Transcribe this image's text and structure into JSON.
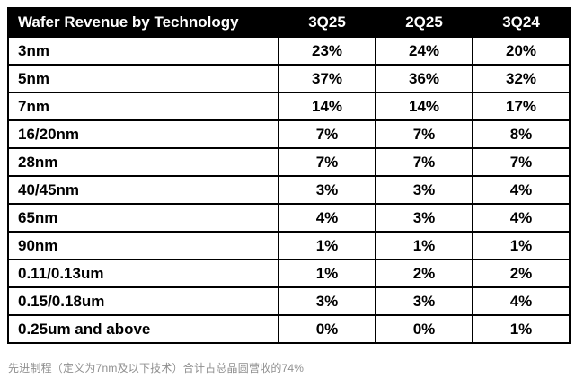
{
  "chart_data": {
    "type": "table",
    "title": "Wafer Revenue by Technology",
    "columns": [
      "3Q25",
      "2Q25",
      "3Q24"
    ],
    "rows": [
      {
        "label": "3nm",
        "values": [
          "23%",
          "24%",
          "20%"
        ]
      },
      {
        "label": "5nm",
        "values": [
          "37%",
          "36%",
          "32%"
        ]
      },
      {
        "label": "7nm",
        "values": [
          "14%",
          "14%",
          "17%"
        ]
      },
      {
        "label": "16/20nm",
        "values": [
          "7%",
          "7%",
          "8%"
        ]
      },
      {
        "label": "28nm",
        "values": [
          "7%",
          "7%",
          "7%"
        ]
      },
      {
        "label": "40/45nm",
        "values": [
          "3%",
          "3%",
          "4%"
        ]
      },
      {
        "label": "65nm",
        "values": [
          "4%",
          "3%",
          "4%"
        ]
      },
      {
        "label": "90nm",
        "values": [
          "1%",
          "1%",
          "1%"
        ]
      },
      {
        "label": "0.11/0.13um",
        "values": [
          "1%",
          "2%",
          "2%"
        ]
      },
      {
        "label": "0.15/0.18um",
        "values": [
          "3%",
          "3%",
          "4%"
        ]
      },
      {
        "label": "0.25um and above",
        "values": [
          "0%",
          "0%",
          "1%"
        ]
      }
    ],
    "footnote": "先进制程（定义为7nm及以下技术）合计占总晶圆营收的74%",
    "colors": {
      "header_bg": "#000000",
      "header_text": "#ffffff",
      "cell_bg": "#ffffff",
      "cell_text": "#000000",
      "border": "#000000",
      "footnote_text": "#8f8f8f"
    }
  }
}
